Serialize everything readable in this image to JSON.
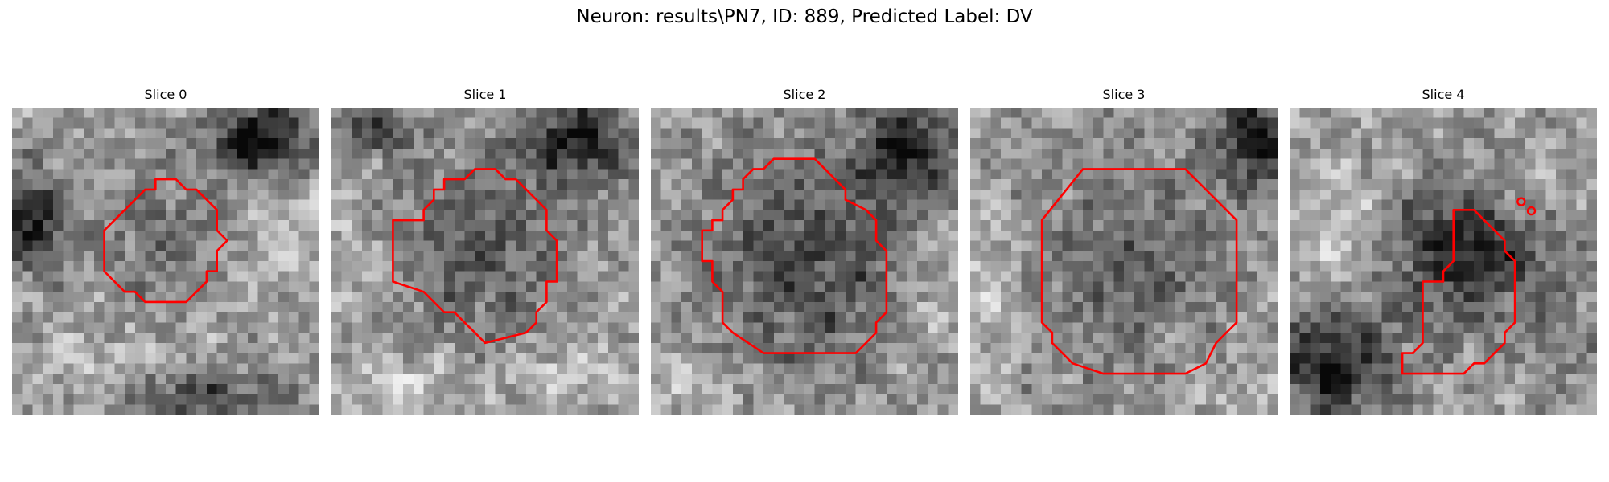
{
  "figure": {
    "suptitle": "Neuron: results\\PN7, ID: 889, Predicted Label: DV"
  },
  "panels": [
    {
      "title": "Slice 0"
    },
    {
      "title": "Slice 1"
    },
    {
      "title": "Slice 2"
    },
    {
      "title": "Slice 3"
    },
    {
      "title": "Slice 4"
    }
  ],
  "colors": {
    "contour": "#ff0000",
    "background": "#ffffff"
  }
}
